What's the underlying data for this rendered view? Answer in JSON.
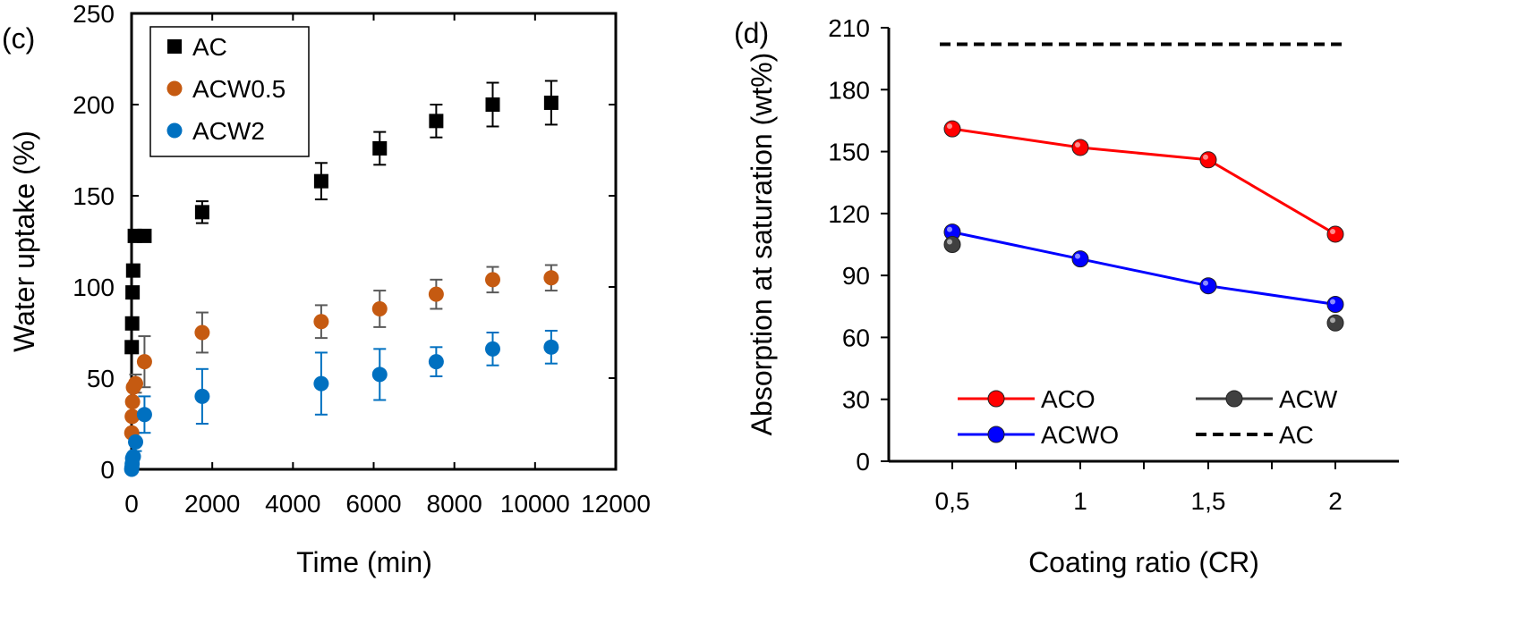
{
  "chart_data": [
    {
      "type": "scatter",
      "panel_label": "(c)",
      "xlabel": "Time (min)",
      "ylabel": "Water uptake (%)",
      "xlim": [
        0,
        12000
      ],
      "ylim": [
        0,
        250
      ],
      "x_ticks": [
        0,
        2000,
        4000,
        6000,
        8000,
        10000,
        12000
      ],
      "x_tick_labels": [
        "0",
        "2000",
        "4000",
        "6000",
        "8000",
        "10000",
        "12000"
      ],
      "y_ticks": [
        0,
        50,
        100,
        150,
        200,
        250
      ],
      "y_tick_labels": [
        "0",
        "50",
        "100",
        "150",
        "200",
        "250"
      ],
      "legend_position": "top-left",
      "series": [
        {
          "name": "AC",
          "marker": "square",
          "color": "#000000",
          "error_color": "#000000",
          "x": [
            5,
            15,
            25,
            40,
            80,
            320,
            1750,
            4700,
            6150,
            7550,
            8950,
            10400
          ],
          "y": [
            67,
            80,
            97,
            109,
            128,
            128,
            141,
            158,
            176,
            191,
            200,
            201
          ],
          "yerr": [
            0,
            0,
            0,
            0,
            0,
            0,
            6,
            10,
            9,
            9,
            12,
            12
          ]
        },
        {
          "name": "ACW0.5",
          "marker": "circle",
          "color": "#c55a11",
          "error_color": "#595959",
          "x": [
            5,
            15,
            25,
            45,
            100,
            320,
            1750,
            4700,
            6150,
            7550,
            8950,
            10400
          ],
          "y": [
            20,
            29,
            37,
            45,
            47,
            59,
            75,
            81,
            88,
            96,
            104,
            105
          ],
          "yerr": [
            0,
            0,
            0,
            0,
            5,
            14,
            11,
            9,
            10,
            8,
            7,
            7
          ]
        },
        {
          "name": "ACW2",
          "marker": "circle",
          "color": "#0070c0",
          "error_color": "#0070c0",
          "x": [
            3,
            8,
            15,
            25,
            45,
            100,
            320,
            1750,
            4700,
            6150,
            7550,
            8950,
            10400
          ],
          "y": [
            0,
            1,
            3,
            6,
            7,
            15,
            30,
            40,
            47,
            52,
            59,
            66,
            67
          ],
          "yerr": [
            0,
            0,
            0,
            0,
            0,
            5,
            10,
            15,
            17,
            14,
            8,
            9,
            9
          ]
        }
      ]
    },
    {
      "type": "line",
      "panel_label": "(d)",
      "xlabel": "Coating ratio (CR)",
      "ylabel": "Absorption at saturation (wt%)",
      "categories": [
        "0,5",
        "1",
        "1,5",
        "2"
      ],
      "ylim": [
        0,
        210
      ],
      "y_ticks": [
        0,
        30,
        60,
        90,
        120,
        150,
        180,
        210
      ],
      "y_tick_labels": [
        "0",
        "30",
        "60",
        "90",
        "120",
        "150",
        "180",
        "210"
      ],
      "legend_position": "bottom",
      "series": [
        {
          "name": "ACO",
          "color": "#ff0000",
          "values": [
            161,
            152,
            146,
            110
          ]
        },
        {
          "name": "ACWO",
          "color": "#0000ff",
          "values": [
            111,
            98,
            85,
            76
          ]
        },
        {
          "name": "ACW",
          "color": "#404040",
          "style": "markers",
          "values": [
            105,
            null,
            null,
            67
          ]
        },
        {
          "name": "AC",
          "color": "#000000",
          "style": "dashed",
          "values": [
            202,
            202,
            202,
            202
          ]
        }
      ]
    }
  ]
}
